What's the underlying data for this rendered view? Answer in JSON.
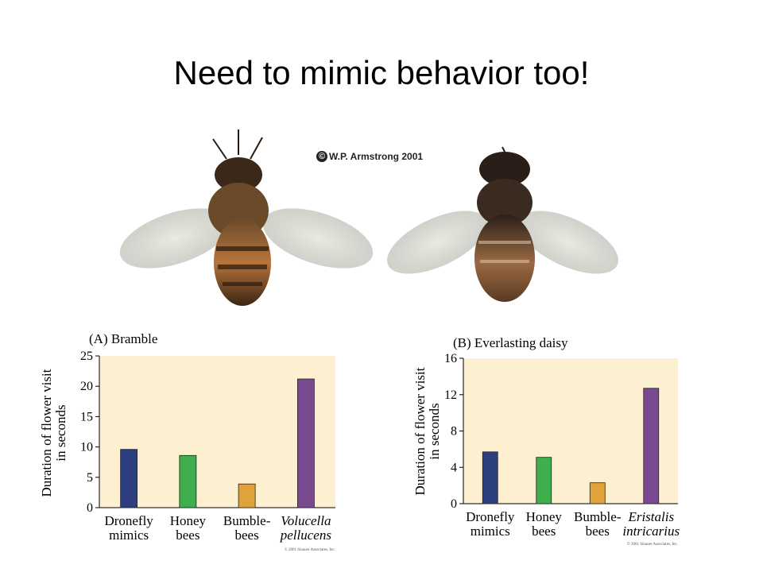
{
  "slide": {
    "title": "Need to mimic behavior too!",
    "photo_credit": "W.P. Armstrong 2001",
    "photo_credit_symbol": "©"
  },
  "chart_data": [
    {
      "type": "bar",
      "title": "(A)  Bramble",
      "ylabel_line1": "Duration of flower visit",
      "ylabel_line2": "in seconds",
      "categories": [
        [
          "Dronefly",
          "mimics"
        ],
        [
          "Honey",
          "bees"
        ],
        [
          "Bumble-",
          "bees"
        ],
        [
          "Volucella",
          "pellucens"
        ]
      ],
      "italic_categories": [
        false,
        false,
        false,
        true
      ],
      "values": [
        9.6,
        8.6,
        3.9,
        21.2
      ],
      "colors": [
        "#2e3f7f",
        "#3fae4c",
        "#e0a33c",
        "#7a4a90"
      ],
      "ylim": [
        0,
        25
      ],
      "yticks": [
        0,
        5,
        10,
        15,
        20,
        25
      ],
      "background": "#fdf0d0",
      "footer": "© 2001 Sinauer Associates, Inc."
    },
    {
      "type": "bar",
      "title": "(B)  Everlasting daisy",
      "ylabel_line1": "Duration of flower visit",
      "ylabel_line2": "in seconds",
      "categories": [
        [
          "Dronefly",
          "mimics"
        ],
        [
          "Honey",
          "bees"
        ],
        [
          "Bumble-",
          "bees"
        ],
        [
          "Eristalis",
          "intricarius"
        ]
      ],
      "italic_categories": [
        false,
        false,
        false,
        true
      ],
      "values": [
        5.7,
        5.1,
        2.3,
        12.7
      ],
      "colors": [
        "#2e3f7f",
        "#3fae4c",
        "#e0a33c",
        "#7a4a90"
      ],
      "ylim": [
        0,
        16
      ],
      "yticks": [
        0,
        4,
        8,
        12,
        16
      ],
      "background": "#fdf0d0",
      "footer": "© 2001 Sinauer Associates, Inc."
    }
  ]
}
